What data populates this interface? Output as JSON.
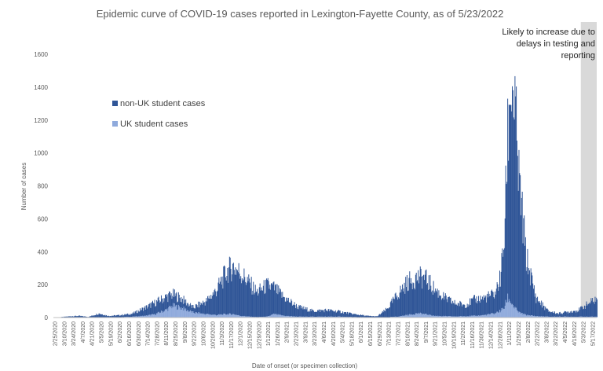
{
  "chart_data": {
    "type": "bar",
    "stacked": true,
    "title": "Epidemic curve of COVID-19 cases reported in Lexington-Fayette County, as of 5/23/2022",
    "xlabel": "Date of onset (or specimen collection)",
    "ylabel": "Number of cases",
    "ylim": [
      0,
      1600
    ],
    "yticks": [
      0,
      200,
      400,
      600,
      800,
      1000,
      1200,
      1400,
      1600
    ],
    "grid": false,
    "legend_position": "left",
    "x_start": "2/25/2020",
    "x_end": "5/23/2022",
    "x_tick_labels": [
      "2/25/2020",
      "3/10/2020",
      "3/24/2020",
      "4/7/2020",
      "4/21/2020",
      "5/5/2020",
      "5/19/2020",
      "6/2/2020",
      "6/16/2020",
      "6/30/2020",
      "7/14/2020",
      "7/28/2020",
      "8/11/2020",
      "8/25/2020",
      "9/8/2020",
      "9/22/2020",
      "10/6/2020",
      "10/20/2020",
      "11/3/2020",
      "11/17/2020",
      "12/1/2020",
      "12/15/2020",
      "12/29/2020",
      "1/12/2021",
      "1/26/2021",
      "2/9/2021",
      "2/23/2021",
      "3/9/2021",
      "3/23/2021",
      "4/6/2021",
      "4/20/2021",
      "5/4/2021",
      "5/18/2021",
      "6/1/2021",
      "6/15/2021",
      "6/29/2021",
      "7/13/2021",
      "7/27/2021",
      "8/10/2021",
      "8/24/2021",
      "9/7/2021",
      "9/21/2021",
      "10/5/2021",
      "10/19/2021",
      "11/2/2021",
      "11/16/2021",
      "11/30/2021",
      "12/14/2021",
      "12/28/2021",
      "1/11/2022",
      "1/25/2022",
      "2/8/2022",
      "2/22/2022",
      "3/8/2022",
      "3/22/2022",
      "4/5/2022",
      "4/19/2022",
      "5/3/2022",
      "5/17/2022"
    ],
    "anchor_dates": [
      "2/25/2020",
      "3/20/2020",
      "4/1/2020",
      "4/15/2020",
      "5/1/2020",
      "5/15/2020",
      "6/1/2020",
      "6/20/2020",
      "7/10/2020",
      "7/25/2020",
      "8/10/2020",
      "8/20/2020",
      "9/1/2020",
      "9/20/2020",
      "10/10/2020",
      "10/25/2020",
      "11/10/2020",
      "11/20/2020",
      "12/1/2020",
      "12/15/2020",
      "12/25/2020",
      "1/10/2021",
      "1/20/2021",
      "2/5/2021",
      "2/25/2021",
      "3/20/2021",
      "4/10/2021",
      "5/1/2021",
      "5/20/2021",
      "6/10/2021",
      "6/25/2021",
      "7/10/2021",
      "7/25/2021",
      "8/10/2021",
      "8/25/2021",
      "9/5/2021",
      "9/20/2021",
      "10/5/2021",
      "10/20/2021",
      "11/5/2021",
      "11/20/2021",
      "12/5/2021",
      "12/20/2021",
      "12/28/2021",
      "1/3/2022",
      "1/8/2022",
      "1/12/2022",
      "1/18/2022",
      "1/25/2022",
      "2/5/2022",
      "2/20/2022",
      "3/10/2022",
      "3/25/2022",
      "4/10/2022",
      "4/25/2022",
      "5/10/2022",
      "5/23/2022"
    ],
    "series": [
      {
        "name": "non-UK student cases",
        "color": "#2F5597",
        "values": [
          0,
          8,
          10,
          4,
          25,
          10,
          12,
          18,
          50,
          70,
          80,
          70,
          60,
          30,
          80,
          150,
          260,
          290,
          260,
          200,
          150,
          190,
          160,
          110,
          60,
          35,
          40,
          30,
          18,
          8,
          5,
          50,
          130,
          200,
          220,
          220,
          160,
          110,
          80,
          70,
          100,
          105,
          120,
          200,
          420,
          980,
          1330,
          1250,
          800,
          350,
          110,
          35,
          20,
          30,
          40,
          80,
          110
        ]
      },
      {
        "name": "UK student cases",
        "color": "#8FAADC",
        "values": [
          0,
          0,
          0,
          0,
          0,
          0,
          2,
          5,
          10,
          20,
          45,
          70,
          60,
          30,
          20,
          15,
          20,
          20,
          10,
          5,
          3,
          5,
          20,
          10,
          5,
          5,
          5,
          5,
          3,
          2,
          2,
          2,
          5,
          15,
          25,
          20,
          10,
          8,
          6,
          8,
          10,
          15,
          25,
          40,
          60,
          120,
          100,
          60,
          30,
          15,
          8,
          5,
          5,
          5,
          5,
          5,
          5
        ]
      }
    ],
    "annotation": {
      "lines": [
        "Likely to increase due to",
        "delays in testing and",
        "reporting"
      ],
      "shaded_from": "4/29/2022",
      "shaded_to": "5/23/2022",
      "shade_color": "#d9d9d9"
    }
  }
}
